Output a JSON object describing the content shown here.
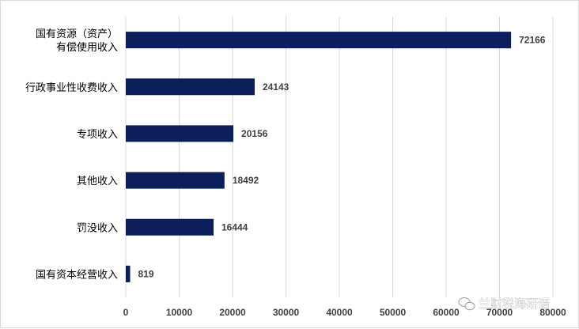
{
  "chart_data": {
    "type": "bar",
    "orientation": "horizontal",
    "categories": [
      [
        "国有资源（资产）",
        "有偿使用收入"
      ],
      [
        "行政事业性收费收入"
      ],
      [
        "专项收入"
      ],
      [
        "其他收入"
      ],
      [
        "罚没收入"
      ],
      [
        "国有资本经营收入"
      ]
    ],
    "values": [
      72166,
      24143,
      20156,
      18492,
      16444,
      819
    ],
    "data_labels": [
      "72166",
      "24143",
      "20156",
      "18492",
      "16444",
      "819"
    ],
    "xlim": [
      0,
      80000
    ],
    "xticks": [
      0,
      10000,
      20000,
      30000,
      40000,
      50000,
      60000,
      70000,
      80000
    ],
    "xtick_labels": [
      "0",
      "10000",
      "20000",
      "30000",
      "40000",
      "50000",
      "60000",
      "70000",
      "80000"
    ],
    "grid": "vertical",
    "bar_color": "#0c1e5b",
    "title": "",
    "xlabel": "",
    "ylabel": ""
  },
  "watermark": {
    "text": "兰财税海研语",
    "icon": "wechat-icon"
  }
}
